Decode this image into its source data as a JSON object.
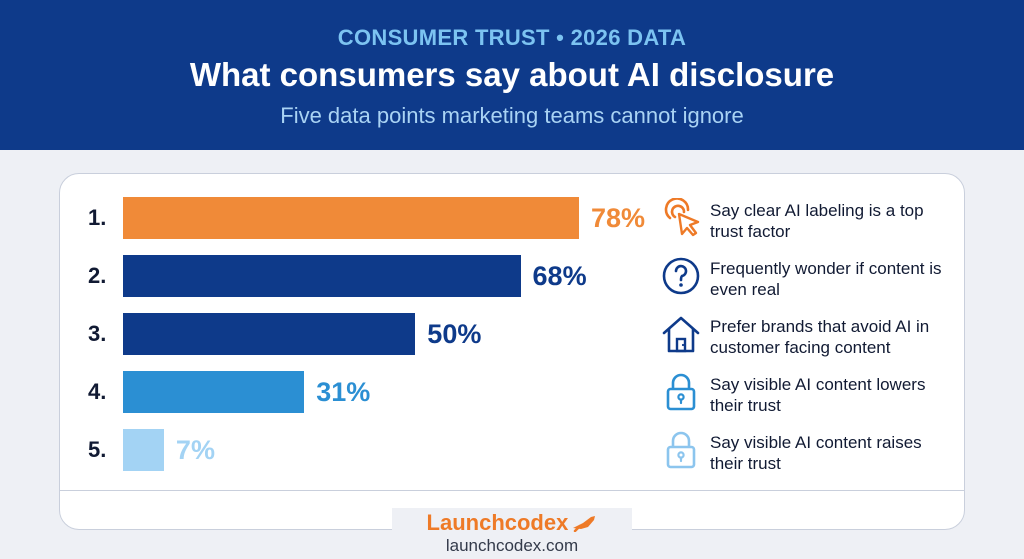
{
  "header": {
    "eyebrow": "CONSUMER TRUST • 2026 DATA",
    "title": "What consumers say about AI disclosure",
    "subtitle": "Five data points marketing teams cannot ignore"
  },
  "chart_data": {
    "type": "bar",
    "orientation": "horizontal",
    "categories": [
      "1.",
      "2.",
      "3.",
      "4.",
      "5."
    ],
    "values": [
      78,
      68,
      50,
      31,
      7
    ],
    "value_labels": [
      "78%",
      "68%",
      "50%",
      "31%",
      "7%"
    ],
    "descriptions": [
      "Say clear AI labeling is a top trust factor",
      "Frequently wonder if content is even real",
      "Prefer brands that avoid AI in customer facing content",
      "Say visible AI content lowers their trust",
      "Say visible AI content raises their trust"
    ],
    "icons": [
      "cursor-click-icon",
      "question-icon",
      "house-icon",
      "lock-icon",
      "lock-icon"
    ],
    "colors": [
      "#f08a38",
      "#0e3a8a",
      "#0e3a8a",
      "#2b8fd3",
      "#a3d3f4"
    ],
    "label_colors": [
      "#f08a38",
      "#0e3a8a",
      "#0e3a8a",
      "#2b8fd3",
      "#a3d3f4"
    ],
    "xlim": [
      0,
      100
    ],
    "grid": false
  },
  "footer": {
    "brand": "Launchcodex",
    "url": "launchcodex.com"
  }
}
